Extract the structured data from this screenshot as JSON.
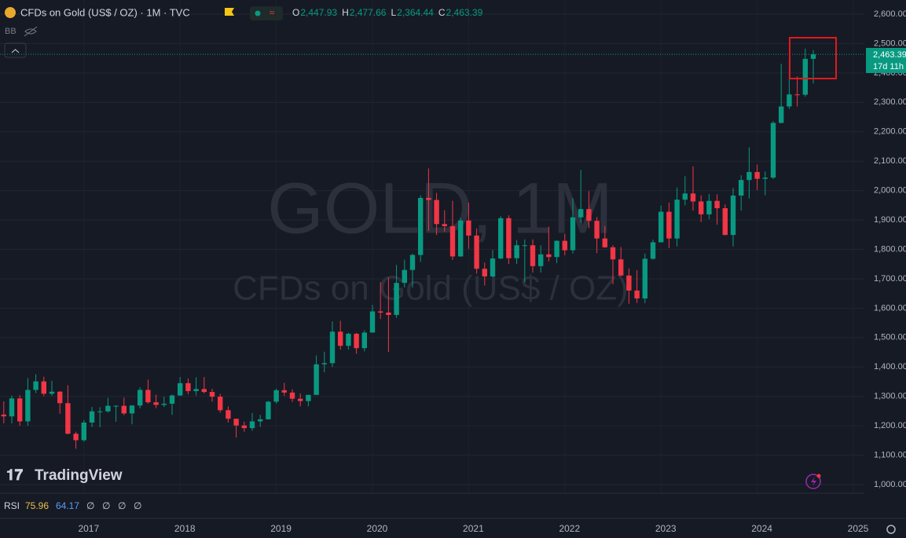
{
  "header": {
    "symbol": "CFDs on Gold (US$ / OZ) · 1M · TVC",
    "indicator": "BB",
    "ohlc_legend": [
      {
        "key": "O",
        "value": "2,447.93"
      },
      {
        "key": "H",
        "value": "2,477.66"
      },
      {
        "key": "L",
        "value": "2,364.44"
      },
      {
        "key": "C",
        "value": "2,463.39"
      }
    ]
  },
  "watermark": {
    "line1": "GOLD, 1M",
    "line2": "CFDs on Gold (US$ / OZ)"
  },
  "logo": "TradingView",
  "rsi": {
    "name": "RSI",
    "value1": "75.96",
    "value2": "64.17",
    "empty": [
      "∅",
      "∅",
      "∅",
      "∅"
    ]
  },
  "last_price": {
    "label": "2,463.39",
    "countdown": "17d 11h"
  },
  "chart_data": {
    "type": "candlestick",
    "up_color": "#089981",
    "down_color": "#f23645",
    "grid": true,
    "ylim": [
      1000,
      2600
    ],
    "yticks": [
      {
        "value": 1000,
        "label": "1,000.00"
      },
      {
        "value": 1100,
        "label": "1,100.00"
      },
      {
        "value": 1200,
        "label": "1,200.00"
      },
      {
        "value": 1300,
        "label": "1,300.00"
      },
      {
        "value": 1400,
        "label": "1,400.00"
      },
      {
        "value": 1500,
        "label": "1,500.00"
      },
      {
        "value": 1600,
        "label": "1,600.00"
      },
      {
        "value": 1700,
        "label": "1,700.00"
      },
      {
        "value": 1800,
        "label": "1,800.00"
      },
      {
        "value": 1900,
        "label": "1,900.00"
      },
      {
        "value": 2000,
        "label": "2,000.00"
      },
      {
        "value": 2100,
        "label": "2,100.00"
      },
      {
        "value": 2200,
        "label": "2,200.00"
      },
      {
        "value": 2300,
        "label": "2,300.00"
      },
      {
        "value": 2400,
        "label": "2,400.00"
      },
      {
        "value": 2500,
        "label": "2,500.00"
      },
      {
        "value": 2600,
        "label": "2,600.00"
      }
    ],
    "xticks": [
      "2017",
      "2018",
      "2019",
      "2020",
      "2021",
      "2022",
      "2023",
      "2024",
      "2025"
    ],
    "open": [
      1116,
      1238,
      1232,
      1293,
      1215,
      1322,
      1351,
      1309,
      1316,
      1277,
      1173,
      1151,
      1211,
      1249,
      1249,
      1268,
      1268,
      1242,
      1269,
      1322,
      1280,
      1271,
      1275,
      1303,
      1345,
      1318,
      1325,
      1315,
      1299,
      1253,
      1224,
      1201,
      1192,
      1215,
      1222,
      1282,
      1321,
      1313,
      1292,
      1284,
      1305,
      1409,
      1413,
      1520,
      1472,
      1513,
      1464,
      1517,
      1589,
      1585,
      1577,
      1686,
      1730,
      1781,
      1975,
      1968,
      1886,
      1879,
      1776,
      1898,
      1847,
      1734,
      1708,
      1769,
      1906,
      1770,
      1814,
      1814,
      1743,
      1783,
      1774,
      1829,
      1797,
      1909,
      1937,
      1897,
      1837,
      1807,
      1766,
      1711,
      1660,
      1633,
      1768,
      1824,
      1928,
      1837,
      1969,
      1990,
      1963,
      1919,
      1965,
      1940,
      1849,
      1983,
      2036,
      2063,
      2040,
      2044,
      2230,
      2286,
      2327,
      2326,
      2447.93
    ],
    "high": [
      1263,
      1283,
      1303,
      1304,
      1362,
      1375,
      1367,
      1353,
      1318,
      1338,
      1180,
      1220,
      1264,
      1263,
      1295,
      1270,
      1296,
      1270,
      1331,
      1357,
      1306,
      1299,
      1307,
      1366,
      1361,
      1365,
      1366,
      1326,
      1309,
      1266,
      1224,
      1214,
      1243,
      1237,
      1284,
      1326,
      1346,
      1324,
      1310,
      1306,
      1439,
      1452,
      1555,
      1557,
      1517,
      1516,
      1525,
      1611,
      1689,
      1704,
      1747,
      1765,
      1785,
      1984,
      2075,
      1992,
      1933,
      1965,
      1906,
      1959,
      1871,
      1755,
      1798,
      1913,
      1916,
      1832,
      1834,
      1834,
      1814,
      1877,
      1831,
      1853,
      1974,
      2070,
      1998,
      1910,
      1879,
      1814,
      1808,
      1735,
      1729,
      1786,
      1833,
      1949,
      1959,
      2010,
      2049,
      2082,
      1984,
      1988,
      1987,
      1953,
      2009,
      2052,
      2147,
      2088,
      2065,
      2236,
      2431,
      2450,
      2388,
      2483,
      2477.66
    ],
    "low": [
      1110,
      1208,
      1208,
      1200,
      1200,
      1311,
      1301,
      1302,
      1241,
      1171,
      1122,
      1146,
      1196,
      1195,
      1245,
      1214,
      1236,
      1205,
      1259,
      1275,
      1260,
      1264,
      1237,
      1302,
      1307,
      1303,
      1310,
      1282,
      1245,
      1211,
      1160,
      1180,
      1183,
      1196,
      1221,
      1275,
      1302,
      1281,
      1266,
      1266,
      1306,
      1382,
      1400,
      1459,
      1459,
      1445,
      1453,
      1517,
      1563,
      1451,
      1567,
      1671,
      1670,
      1757,
      1863,
      1849,
      1860,
      1764,
      1775,
      1802,
      1717,
      1677,
      1706,
      1766,
      1750,
      1750,
      1688,
      1721,
      1721,
      1759,
      1753,
      1780,
      1786,
      1890,
      1872,
      1787,
      1805,
      1681,
      1709,
      1615,
      1618,
      1617,
      1765,
      1824,
      1804,
      1810,
      1950,
      1932,
      1893,
      1903,
      1884,
      1848,
      1810,
      1932,
      1973,
      2002,
      1984,
      2039,
      2229,
      2277,
      2286,
      2319,
      2364.44
    ],
    "close": [
      1238,
      1232,
      1293,
      1215,
      1322,
      1351,
      1309,
      1316,
      1277,
      1173,
      1151,
      1211,
      1249,
      1249,
      1268,
      1268,
      1242,
      1269,
      1322,
      1280,
      1271,
      1275,
      1303,
      1345,
      1318,
      1325,
      1315,
      1299,
      1253,
      1224,
      1201,
      1192,
      1215,
      1222,
      1282,
      1321,
      1313,
      1292,
      1284,
      1305,
      1409,
      1413,
      1520,
      1472,
      1513,
      1464,
      1517,
      1589,
      1585,
      1577,
      1686,
      1730,
      1781,
      1975,
      1968,
      1886,
      1879,
      1776,
      1898,
      1847,
      1734,
      1708,
      1769,
      1906,
      1770,
      1814,
      1814,
      1743,
      1783,
      1774,
      1829,
      1797,
      1909,
      1937,
      1897,
      1837,
      1807,
      1766,
      1711,
      1660,
      1633,
      1768,
      1824,
      1928,
      1837,
      1969,
      1990,
      1963,
      1919,
      1965,
      1940,
      1849,
      1983,
      2036,
      2063,
      2040,
      2044,
      2230,
      2286,
      2327,
      2326,
      2447.93,
      2463.39
    ]
  }
}
